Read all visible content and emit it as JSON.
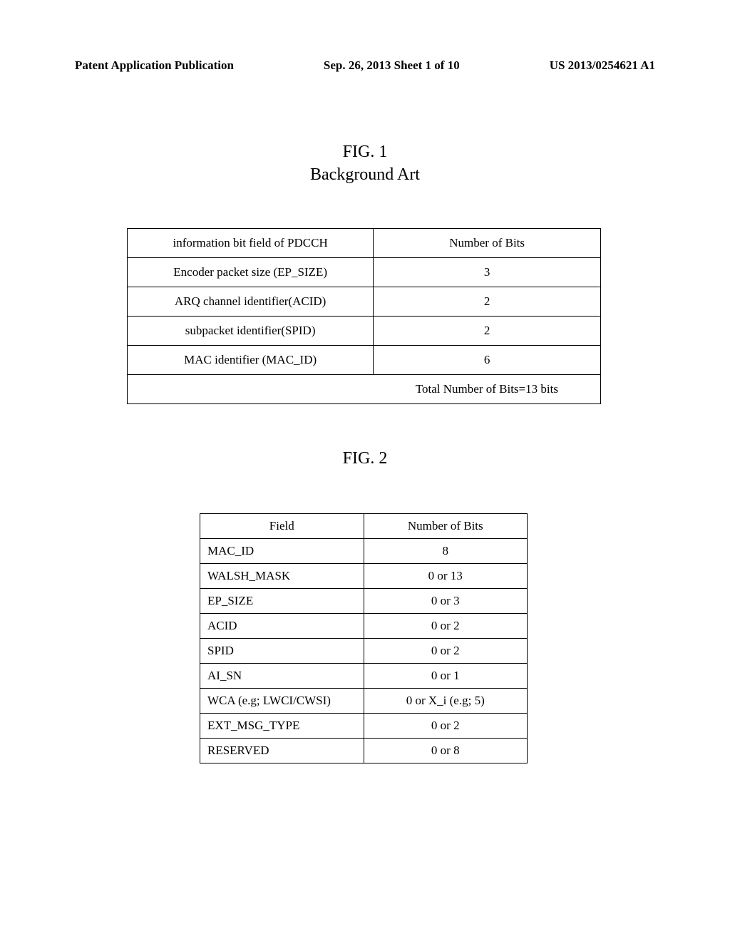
{
  "header": {
    "left": "Patent Application Publication",
    "center": "Sep. 26, 2013  Sheet 1 of 10",
    "right": "US 2013/0254621 A1"
  },
  "fig1": {
    "title": "FIG. 1",
    "subtitle": "Background Art",
    "table": {
      "headers": [
        "information bit field of PDCCH",
        "Number of Bits"
      ],
      "rows": [
        [
          "Encoder packet size (EP_SIZE)",
          "3"
        ],
        [
          "ARQ channel identifier(ACID)",
          "2"
        ],
        [
          "subpacket identifier(SPID)",
          "2"
        ],
        [
          "MAC identifier (MAC_ID)",
          "6"
        ]
      ],
      "footer": "Total Number of Bits=13 bits"
    }
  },
  "fig2": {
    "title": "FIG. 2",
    "table": {
      "headers": [
        "Field",
        "Number of Bits"
      ],
      "rows": [
        [
          "MAC_ID",
          "8"
        ],
        [
          "WALSH_MASK",
          "0 or 13"
        ],
        [
          "EP_SIZE",
          "0 or 3"
        ],
        [
          "ACID",
          "0 or 2"
        ],
        [
          "SPID",
          "0 or 2"
        ],
        [
          "AI_SN",
          "0 or 1"
        ],
        [
          "WCA (e.g; LWCI/CWSI)",
          "0 or X_i (e.g; 5)"
        ],
        [
          "EXT_MSG_TYPE",
          "0 or 2"
        ],
        [
          "RESERVED",
          "0 or 8"
        ]
      ]
    }
  }
}
